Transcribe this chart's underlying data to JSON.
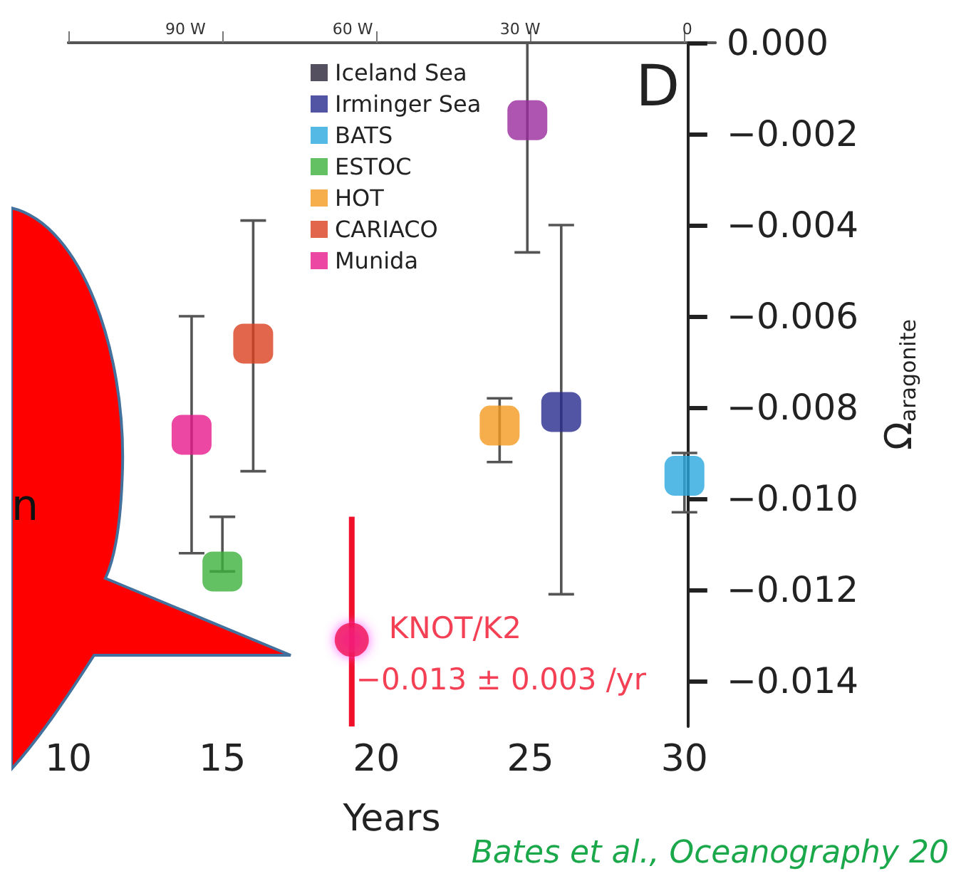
{
  "chart_data": {
    "type": "scatter",
    "title": "D",
    "xlabel": "Years",
    "ylabel": "Ω$_{aragonite}$",
    "xlim": [
      10,
      31
    ],
    "xticks": [
      10,
      15,
      20,
      25,
      30
    ],
    "x2lim": [
      -111,
      5
    ],
    "x2ticks": [
      {
        "value": -90,
        "label": "90 W"
      },
      {
        "value": -60,
        "label": "60 W"
      },
      {
        "value": -30,
        "label": "30 W"
      },
      0
    ],
    "ylim": [
      -0.015,
      0
    ],
    "yticks": [
      {
        "value": 0,
        "label": "0.000"
      },
      {
        "value": -0.002,
        "label": "−0.002"
      },
      {
        "value": -0.004,
        "label": "−0.004"
      },
      {
        "value": -0.006,
        "label": "−0.006"
      },
      {
        "value": -0.008,
        "label": "−0.008"
      },
      {
        "value": -0.01,
        "label": "−0.010"
      },
      {
        "value": -0.012,
        "label": "−0.012"
      },
      {
        "value": -0.014,
        "label": "−0.014"
      }
    ],
    "legend": "top",
    "grid": false,
    "series": [
      {
        "name": "Iceland Sea",
        "color": "#2a2438",
        "marker": "square"
      },
      {
        "name": "Irminger Sea",
        "color": "#262a8c",
        "marker": "square",
        "x": [
          26.0
        ],
        "values": [
          -0.0081
        ],
        "errors": [
          [
            -0.0121,
            -0.004
          ]
        ]
      },
      {
        "name": "BATS",
        "color": "#2aa8e0",
        "marker": "square",
        "x": [
          30.0
        ],
        "values": [
          -0.0095
        ],
        "errors": [
          [
            -0.0103,
            -0.009
          ]
        ]
      },
      {
        "name": "ESTOC",
        "color": "#3cb03c",
        "marker": "square",
        "x": [
          15.0
        ],
        "values": [
          -0.0116
        ],
        "errors": [
          [
            -0.0116,
            -0.0104
          ]
        ]
      },
      {
        "name": "HOT",
        "color": "#f39a1e",
        "marker": "square",
        "x": [
          24.0
        ],
        "values": [
          -0.0084
        ],
        "errors": [
          [
            -0.0092,
            -0.0078
          ]
        ]
      },
      {
        "name": "CARIACO",
        "color": "#d9401e",
        "marker": "square",
        "x": [
          16.0
        ],
        "values": [
          -0.0066
        ],
        "errors": [
          [
            -0.0094,
            -0.0039
          ]
        ]
      },
      {
        "name": "Munida",
        "color": "#e6198c",
        "marker": "square",
        "x": [
          14.0
        ],
        "values": [
          -0.0086
        ],
        "errors": [
          [
            -0.0112,
            -0.006
          ]
        ]
      },
      {
        "color": "#9a2a9e",
        "marker": "square",
        "x": [
          24.9
        ],
        "values": [
          -0.0017
        ],
        "errors": [
          [
            -0.0046,
            0
          ]
        ]
      },
      {
        "name": "KNOT/K2",
        "color": "#f0102a",
        "marker": "circle",
        "x": [
          19.2
        ],
        "values": [
          -0.0131
        ],
        "errors": [
          [
            -0.015,
            -0.0104
          ]
        ]
      }
    ],
    "annotations": [
      {
        "text": "−0.013 ± 0.003 /yr",
        "x": 19.2,
        "y": -0.0131
      },
      "n",
      "Bates et al., Oceanography 20"
    ]
  }
}
